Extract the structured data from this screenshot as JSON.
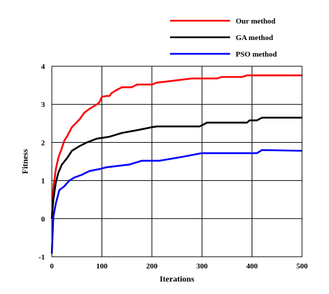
{
  "chart_data": {
    "type": "line",
    "title": "",
    "xlabel": "Iterations",
    "ylabel": "Fitness",
    "xlim": [
      0,
      500
    ],
    "ylim": [
      -1,
      4
    ],
    "xticks": [
      0,
      100,
      200,
      300,
      400,
      500
    ],
    "yticks": [
      -1,
      0,
      1,
      2,
      3,
      4
    ],
    "grid": true,
    "legend_position": "top-right, above plot",
    "series": [
      {
        "name": "Our method",
        "color": "#ff0000",
        "points": [
          [
            0,
            0
          ],
          [
            3,
            0.8
          ],
          [
            8,
            1.3
          ],
          [
            13,
            1.6
          ],
          [
            20,
            1.85
          ],
          [
            25,
            2.05
          ],
          [
            30,
            2.15
          ],
          [
            40,
            2.4
          ],
          [
            55,
            2.6
          ],
          [
            65,
            2.78
          ],
          [
            75,
            2.88
          ],
          [
            90,
            3.0
          ],
          [
            95,
            3.05
          ],
          [
            100,
            3.2
          ],
          [
            110,
            3.22
          ],
          [
            115,
            3.22
          ],
          [
            120,
            3.3
          ],
          [
            130,
            3.38
          ],
          [
            140,
            3.45
          ],
          [
            160,
            3.45
          ],
          [
            170,
            3.52
          ],
          [
            200,
            3.52
          ],
          [
            210,
            3.57
          ],
          [
            230,
            3.6
          ],
          [
            280,
            3.68
          ],
          [
            330,
            3.68
          ],
          [
            340,
            3.72
          ],
          [
            380,
            3.72
          ],
          [
            390,
            3.76
          ],
          [
            500,
            3.76
          ]
        ]
      },
      {
        "name": "GA method",
        "color": "#000000",
        "points": [
          [
            0,
            0
          ],
          [
            3,
            0.5
          ],
          [
            8,
            0.95
          ],
          [
            13,
            1.2
          ],
          [
            20,
            1.42
          ],
          [
            30,
            1.58
          ],
          [
            40,
            1.78
          ],
          [
            55,
            1.9
          ],
          [
            70,
            2.0
          ],
          [
            90,
            2.1
          ],
          [
            100,
            2.12
          ],
          [
            115,
            2.15
          ],
          [
            140,
            2.25
          ],
          [
            170,
            2.32
          ],
          [
            200,
            2.4
          ],
          [
            210,
            2.42
          ],
          [
            220,
            2.42
          ],
          [
            295,
            2.42
          ],
          [
            300,
            2.45
          ],
          [
            310,
            2.52
          ],
          [
            390,
            2.52
          ],
          [
            395,
            2.58
          ],
          [
            410,
            2.58
          ],
          [
            420,
            2.65
          ],
          [
            500,
            2.65
          ]
        ]
      },
      {
        "name": "PSO method",
        "color": "#0000ff",
        "points": [
          [
            0,
            -0.92
          ],
          [
            3,
            0.05
          ],
          [
            8,
            0.4
          ],
          [
            15,
            0.75
          ],
          [
            25,
            0.85
          ],
          [
            35,
            1.0
          ],
          [
            45,
            1.08
          ],
          [
            60,
            1.15
          ],
          [
            75,
            1.25
          ],
          [
            95,
            1.3
          ],
          [
            110,
            1.35
          ],
          [
            130,
            1.38
          ],
          [
            155,
            1.42
          ],
          [
            180,
            1.52
          ],
          [
            215,
            1.52
          ],
          [
            260,
            1.62
          ],
          [
            300,
            1.72
          ],
          [
            310,
            1.72
          ],
          [
            410,
            1.72
          ],
          [
            420,
            1.8
          ],
          [
            500,
            1.78
          ]
        ]
      }
    ]
  }
}
